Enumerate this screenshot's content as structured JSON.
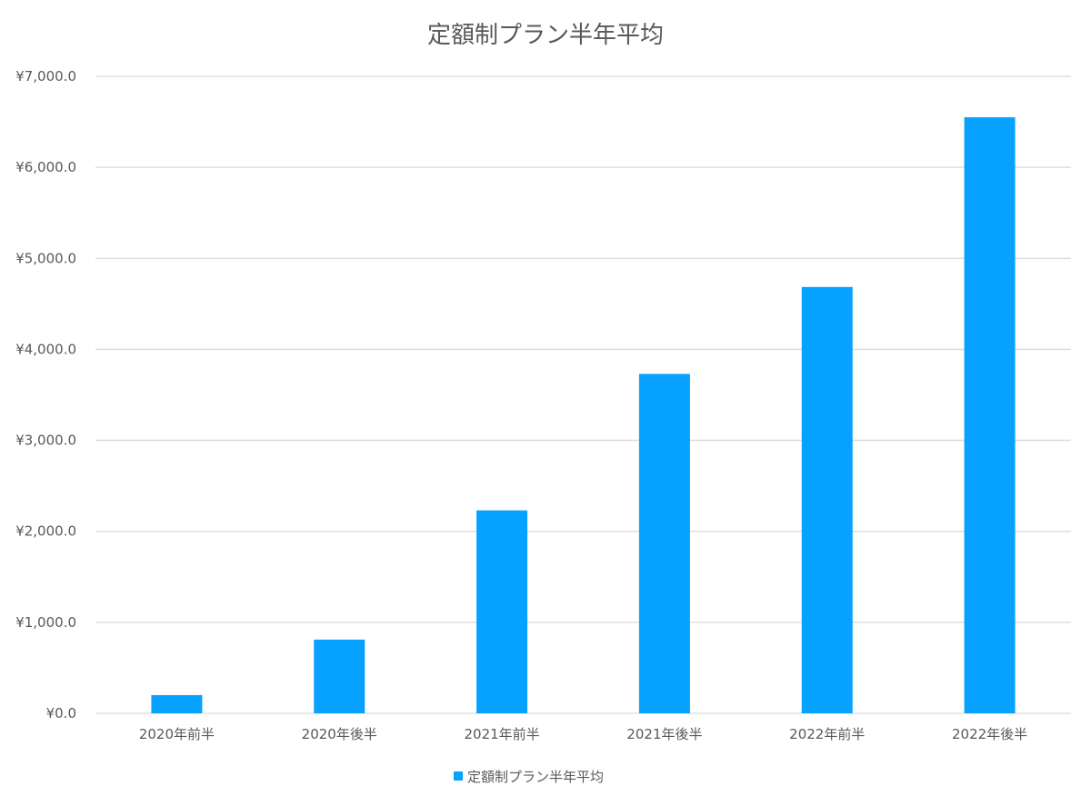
{
  "chart_data": {
    "type": "bar",
    "title": "定額制プラン半年平均",
    "categories": [
      "2020年前半",
      "2020年後半",
      "2021年前半",
      "2021年後半",
      "2022年前半",
      "2022年後半"
    ],
    "series": [
      {
        "name": "定額制プラン半年平均",
        "values": [
          200,
          810,
          2230,
          3730,
          4685,
          6550
        ],
        "color": "#07A2FF"
      }
    ],
    "xlabel": "",
    "ylabel": "",
    "ylim": [
      0,
      7000
    ],
    "yticks": [
      0,
      1000,
      2000,
      3000,
      4000,
      5000,
      6000,
      7000
    ],
    "ytick_labels": [
      "¥0.0",
      "¥1,000.0",
      "¥2,000.0",
      "¥3,000.0",
      "¥4,000.0",
      "¥5,000.0",
      "¥6,000.0",
      "¥7,000.0"
    ],
    "grid": true,
    "gridline_color": "#D9D9D9",
    "legend_position": "bottom"
  }
}
